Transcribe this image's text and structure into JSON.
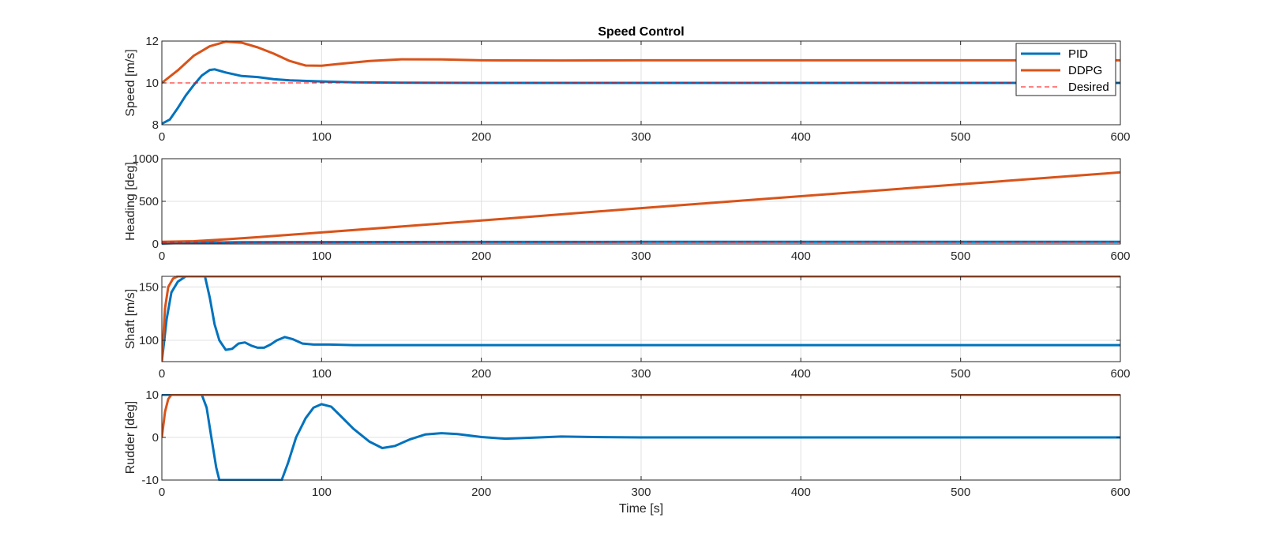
{
  "colors": {
    "pid": "#0072BD",
    "ddpg": "#D95319",
    "desired": "#FF0000",
    "grid": "#e0e0e0",
    "axis": "#262626"
  },
  "figure_title": "Speed Control",
  "legend": {
    "placement": "top-right of first subplot",
    "items": [
      {
        "label": "PID",
        "style": "solid",
        "color": "#0072BD"
      },
      {
        "label": "DDPG",
        "style": "solid",
        "color": "#D95319"
      },
      {
        "label": "Desired",
        "style": "dashed",
        "color": "#FF0000"
      }
    ]
  },
  "chart_data": [
    {
      "type": "line",
      "title": "Speed Control",
      "xlabel": "",
      "ylabel": "Speed [m/s]",
      "xlim": [
        0,
        600
      ],
      "ylim": [
        8,
        12
      ],
      "xticks": [
        0,
        100,
        200,
        300,
        400,
        500,
        600
      ],
      "yticks": [
        8,
        10,
        12
      ],
      "grid": true,
      "series": [
        {
          "name": "PID",
          "points": [
            [
              0,
              8.05
            ],
            [
              5,
              8.25
            ],
            [
              10,
              8.8
            ],
            [
              15,
              9.4
            ],
            [
              20,
              9.9
            ],
            [
              25,
              10.35
            ],
            [
              30,
              10.62
            ],
            [
              33,
              10.65
            ],
            [
              40,
              10.5
            ],
            [
              50,
              10.33
            ],
            [
              60,
              10.28
            ],
            [
              70,
              10.18
            ],
            [
              80,
              10.12
            ],
            [
              100,
              10.07
            ],
            [
              120,
              10.03
            ],
            [
              150,
              10.01
            ],
            [
              200,
              10.0
            ],
            [
              300,
              10.0
            ],
            [
              400,
              10.0
            ],
            [
              500,
              10.0
            ],
            [
              600,
              10.0
            ]
          ]
        },
        {
          "name": "DDPG",
          "points": [
            [
              0,
              10.0
            ],
            [
              10,
              10.6
            ],
            [
              20,
              11.3
            ],
            [
              30,
              11.75
            ],
            [
              40,
              11.97
            ],
            [
              50,
              11.92
            ],
            [
              60,
              11.7
            ],
            [
              70,
              11.4
            ],
            [
              80,
              11.05
            ],
            [
              90,
              10.83
            ],
            [
              100,
              10.82
            ],
            [
              110,
              10.9
            ],
            [
              130,
              11.05
            ],
            [
              150,
              11.13
            ],
            [
              175,
              11.12
            ],
            [
              200,
              11.08
            ],
            [
              250,
              11.07
            ],
            [
              300,
              11.08
            ],
            [
              400,
              11.08
            ],
            [
              500,
              11.08
            ],
            [
              600,
              11.08
            ]
          ]
        },
        {
          "name": "Desired",
          "points": [
            [
              0,
              10
            ],
            [
              600,
              10
            ]
          ]
        }
      ]
    },
    {
      "type": "line",
      "title": "",
      "xlabel": "",
      "ylabel": "Heading [deg]",
      "xlim": [
        0,
        600
      ],
      "ylim": [
        0,
        1000
      ],
      "xticks": [
        0,
        100,
        200,
        300,
        400,
        500,
        600
      ],
      "yticks": [
        0,
        500,
        1000
      ],
      "grid": true,
      "series": [
        {
          "name": "PID",
          "points": [
            [
              0,
              5
            ],
            [
              10,
              10
            ],
            [
              20,
              16
            ],
            [
              30,
              18
            ],
            [
              50,
              20
            ],
            [
              100,
              22
            ],
            [
              200,
              24
            ],
            [
              300,
              25
            ],
            [
              400,
              25
            ],
            [
              500,
              25
            ],
            [
              600,
              25
            ]
          ]
        },
        {
          "name": "DDPG",
          "points": [
            [
              0,
              25
            ],
            [
              20,
              32
            ],
            [
              40,
              55
            ],
            [
              60,
              80
            ],
            [
              100,
              135
            ],
            [
              200,
              275
            ],
            [
              300,
              420
            ],
            [
              400,
              560
            ],
            [
              500,
              700
            ],
            [
              600,
              840
            ]
          ]
        },
        {
          "name": "Desired",
          "points": [
            [
              0,
              20
            ],
            [
              600,
              20
            ]
          ]
        }
      ]
    },
    {
      "type": "line",
      "title": "",
      "xlabel": "",
      "ylabel": "Shaft [m/s]",
      "xlim": [
        0,
        600
      ],
      "ylim": [
        80,
        160
      ],
      "xticks": [
        0,
        100,
        200,
        300,
        400,
        500,
        600
      ],
      "yticks": [
        100,
        150
      ],
      "grid": true,
      "series": [
        {
          "name": "PID",
          "points": [
            [
              0,
              80
            ],
            [
              3,
              120
            ],
            [
              6,
              145
            ],
            [
              10,
              155
            ],
            [
              15,
              160
            ],
            [
              27,
              160
            ],
            [
              30,
              140
            ],
            [
              33,
              115
            ],
            [
              36,
              100
            ],
            [
              40,
              91
            ],
            [
              44,
              92
            ],
            [
              48,
              97
            ],
            [
              52,
              98
            ],
            [
              56,
              95
            ],
            [
              60,
              93
            ],
            [
              64,
              93
            ],
            [
              68,
              96
            ],
            [
              72,
              100
            ],
            [
              77,
              103
            ],
            [
              82,
              101
            ],
            [
              88,
              97
            ],
            [
              95,
              96
            ],
            [
              105,
              96
            ],
            [
              120,
              95.5
            ],
            [
              200,
              95.5
            ],
            [
              300,
              95.5
            ],
            [
              400,
              95.5
            ],
            [
              500,
              95.5
            ],
            [
              600,
              95.5
            ]
          ]
        },
        {
          "name": "DDPG",
          "points": [
            [
              0,
              80
            ],
            [
              2,
              130
            ],
            [
              4,
              150
            ],
            [
              7,
              158
            ],
            [
              10,
              160
            ],
            [
              600,
              160
            ]
          ]
        }
      ]
    },
    {
      "type": "line",
      "title": "",
      "xlabel": "Time [s]",
      "ylabel": "Rudder [deg]",
      "xlim": [
        0,
        600
      ],
      "ylim": [
        -10,
        10
      ],
      "xticks": [
        0,
        100,
        200,
        300,
        400,
        500,
        600
      ],
      "yticks": [
        -10,
        0,
        10
      ],
      "grid": true,
      "series": [
        {
          "name": "PID",
          "points": [
            [
              0,
              10
            ],
            [
              25,
              10
            ],
            [
              28,
              7
            ],
            [
              31,
              0
            ],
            [
              34,
              -7
            ],
            [
              36,
              -10
            ],
            [
              75,
              -10
            ],
            [
              79,
              -6
            ],
            [
              84,
              0
            ],
            [
              90,
              4.5
            ],
            [
              95,
              7
            ],
            [
              100,
              7.8
            ],
            [
              106,
              7.2
            ],
            [
              112,
              5
            ],
            [
              120,
              2
            ],
            [
              130,
              -1
            ],
            [
              138,
              -2.5
            ],
            [
              146,
              -2
            ],
            [
              155,
              -0.5
            ],
            [
              165,
              0.7
            ],
            [
              175,
              1
            ],
            [
              185,
              0.8
            ],
            [
              200,
              0.1
            ],
            [
              215,
              -0.3
            ],
            [
              230,
              -0.1
            ],
            [
              250,
              0.2
            ],
            [
              270,
              0.1
            ],
            [
              300,
              0
            ],
            [
              400,
              0
            ],
            [
              500,
              0
            ],
            [
              600,
              0
            ]
          ]
        },
        {
          "name": "DDPG",
          "points": [
            [
              0,
              0
            ],
            [
              2,
              6
            ],
            [
              4,
              9
            ],
            [
              6,
              10
            ],
            [
              600,
              10
            ]
          ]
        }
      ]
    }
  ]
}
